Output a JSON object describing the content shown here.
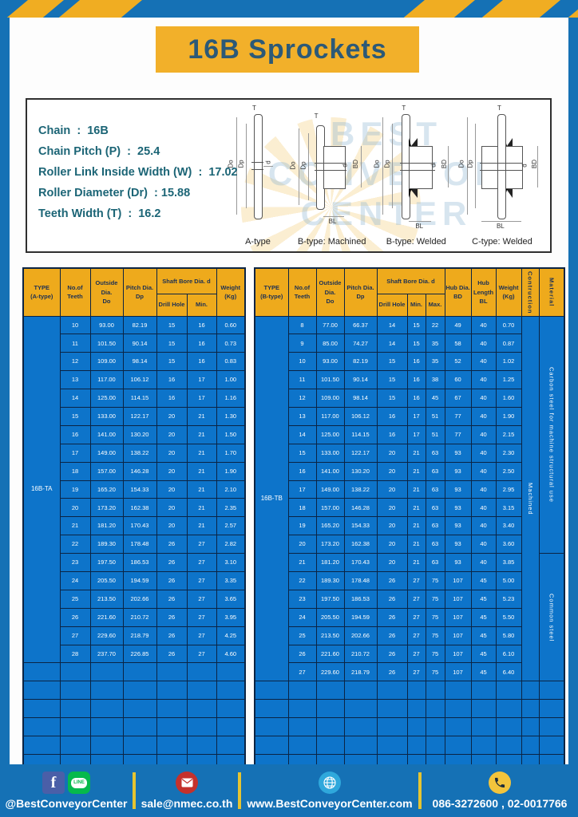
{
  "colors": {
    "page_blue": "#1571b5",
    "accent_yellow": "#f2b02a",
    "header_yellow": "#eeaa1c",
    "table_blue": "#0d74ca",
    "table_border": "#0b2444",
    "title_text": "#2c5977",
    "spec_text": "#1c6576"
  },
  "title": "16B Sprockets",
  "info": {
    "specs": [
      "Chain  :  16B",
      "Chain Pitch (P)  :  25.4",
      "Roller Link Inside Width (W)  :  17.02",
      "Roller Diameter (Dr)  : 15.88",
      "Teeth Width (T)  :  16.2"
    ],
    "watermark": "BEST\nCONVEYOR\nCENTER"
  },
  "drawings": [
    {
      "label": "A-type",
      "dims": {
        "t": "T",
        "outer": "Do",
        "pitch": "Dp",
        "bore": "d"
      }
    },
    {
      "label": "B-type: Machined",
      "dims": {
        "t": "T",
        "outer": "Do",
        "pitch": "Dp",
        "bore": "d",
        "hub_dia": "BD",
        "hub_len": "BL"
      }
    },
    {
      "label": "B-type: Welded",
      "dims": {
        "t": "T",
        "outer": "Do",
        "pitch": "Dp",
        "bore": "d",
        "hub_dia": "BD",
        "hub_len": "BL"
      }
    },
    {
      "label": "C-type: Welded",
      "dims": {
        "t": "T",
        "outer": "Do",
        "pitch": "Dp",
        "bore": "d",
        "hub_dia": "BD",
        "hub_len": "BL"
      }
    }
  ],
  "table_a": {
    "headers": {
      "type": "TYPE\n(A-type)",
      "teeth": "No.of\nTeeth",
      "do": "Outside\nDia.\nDo",
      "dp": "Pitch Dia.\nDp",
      "shaft": "Shaft Bore Dia. d",
      "drill": "Drill Hole",
      "min": "Min.",
      "weight": "Weight\n(Kg)"
    },
    "type_label": "16B-TA",
    "rows": [
      [
        "10",
        "93.00",
        "82.19",
        "15",
        "16",
        "0.60"
      ],
      [
        "11",
        "101.50",
        "90.14",
        "15",
        "16",
        "0.73"
      ],
      [
        "12",
        "109.00",
        "98.14",
        "15",
        "16",
        "0.83"
      ],
      [
        "13",
        "117.00",
        "106.12",
        "16",
        "17",
        "1.00"
      ],
      [
        "14",
        "125.00",
        "114.15",
        "16",
        "17",
        "1.16"
      ],
      [
        "15",
        "133.00",
        "122.17",
        "20",
        "21",
        "1.30"
      ],
      [
        "16",
        "141.00",
        "130.20",
        "20",
        "21",
        "1.50"
      ],
      [
        "17",
        "149.00",
        "138.22",
        "20",
        "21",
        "1.70"
      ],
      [
        "18",
        "157.00",
        "146.28",
        "20",
        "21",
        "1.90"
      ],
      [
        "19",
        "165.20",
        "154.33",
        "20",
        "21",
        "2.10"
      ],
      [
        "20",
        "173.20",
        "162.38",
        "20",
        "21",
        "2.35"
      ],
      [
        "21",
        "181.20",
        "170.43",
        "20",
        "21",
        "2.57"
      ],
      [
        "22",
        "189.30",
        "178.48",
        "26",
        "27",
        "2.82"
      ],
      [
        "23",
        "197.50",
        "186.53",
        "26",
        "27",
        "3.10"
      ],
      [
        "24",
        "205.50",
        "194.59",
        "26",
        "27",
        "3.35"
      ],
      [
        "25",
        "213.50",
        "202.66",
        "26",
        "27",
        "3.65"
      ],
      [
        "26",
        "221.60",
        "210.72",
        "26",
        "27",
        "3.95"
      ],
      [
        "27",
        "229.60",
        "218.79",
        "26",
        "27",
        "4.25"
      ],
      [
        "28",
        "237.70",
        "226.85",
        "26",
        "27",
        "4.60"
      ]
    ],
    "empty_rows": 6
  },
  "table_b": {
    "headers": {
      "type": "TYPE\n(B-type)",
      "teeth": "No.of\nTeeth",
      "do": "Outside\nDia.\nDo",
      "dp": "Pitch Dia.\nDp",
      "shaft": "Shaft Bore Dia. d",
      "drill": "Drill Hole",
      "min": "Min.",
      "max": "Max.",
      "bd": "Hub Dia.\nBD",
      "bl": "Hub\nLength\nBL",
      "weight": "Weight\n(Kg)",
      "construction": "Contruction",
      "material": "Material"
    },
    "type_label": "16B-TB",
    "rows": [
      [
        "8",
        "77.00",
        "66.37",
        "14",
        "15",
        "22",
        "49",
        "40",
        "0.70"
      ],
      [
        "9",
        "85.00",
        "74.27",
        "14",
        "15",
        "35",
        "58",
        "40",
        "0.87"
      ],
      [
        "10",
        "93.00",
        "82.19",
        "15",
        "16",
        "35",
        "52",
        "40",
        "1.02"
      ],
      [
        "11",
        "101.50",
        "90.14",
        "15",
        "16",
        "38",
        "60",
        "40",
        "1.25"
      ],
      [
        "12",
        "109.00",
        "98.14",
        "15",
        "16",
        "45",
        "67",
        "40",
        "1.60"
      ],
      [
        "13",
        "117.00",
        "106.12",
        "16",
        "17",
        "51",
        "77",
        "40",
        "1.90"
      ],
      [
        "14",
        "125.00",
        "114.15",
        "16",
        "17",
        "51",
        "77",
        "40",
        "2.15"
      ],
      [
        "15",
        "133.00",
        "122.17",
        "20",
        "21",
        "63",
        "93",
        "40",
        "2.30"
      ],
      [
        "16",
        "141.00",
        "130.20",
        "20",
        "21",
        "63",
        "93",
        "40",
        "2.50"
      ],
      [
        "17",
        "149.00",
        "138.22",
        "20",
        "21",
        "63",
        "93",
        "40",
        "2.95"
      ],
      [
        "18",
        "157.00",
        "146.28",
        "20",
        "21",
        "63",
        "93",
        "40",
        "3.15"
      ],
      [
        "19",
        "165.20",
        "154.33",
        "20",
        "21",
        "63",
        "93",
        "40",
        "3.40"
      ],
      [
        "20",
        "173.20",
        "162.38",
        "20",
        "21",
        "63",
        "93",
        "40",
        "3.60"
      ],
      [
        "21",
        "181.20",
        "170.43",
        "20",
        "21",
        "63",
        "93",
        "40",
        "3.85"
      ],
      [
        "22",
        "189.30",
        "178.48",
        "26",
        "27",
        "75",
        "107",
        "45",
        "5.00"
      ],
      [
        "23",
        "197.50",
        "186.53",
        "26",
        "27",
        "75",
        "107",
        "45",
        "5.23"
      ],
      [
        "24",
        "205.50",
        "194.59",
        "26",
        "27",
        "75",
        "107",
        "45",
        "5.50"
      ],
      [
        "25",
        "213.50",
        "202.66",
        "26",
        "27",
        "75",
        "107",
        "45",
        "5.80"
      ],
      [
        "26",
        "221.60",
        "210.72",
        "26",
        "27",
        "75",
        "107",
        "45",
        "6.10"
      ],
      [
        "27",
        "229.60",
        "218.79",
        "26",
        "27",
        "75",
        "107",
        "45",
        "6.40"
      ]
    ],
    "construction": "Machined",
    "material_top": "Carbon steel for machine structural use",
    "material_split": 13,
    "material_bottom": "Common steel",
    "empty_rows": 5
  },
  "footer": {
    "icons": [
      "facebook-icon",
      "line-icon",
      "email-icon",
      "globe-icon",
      "phone-icon"
    ],
    "facebook_glyph": "f",
    "line_glyph": "LINE",
    "social_label": "@BestConveyorCenter",
    "email": "sale@nmec.co.th",
    "website": "www.BestConveyorCenter.com",
    "phones": "086-3272600 , 02-0017766"
  }
}
